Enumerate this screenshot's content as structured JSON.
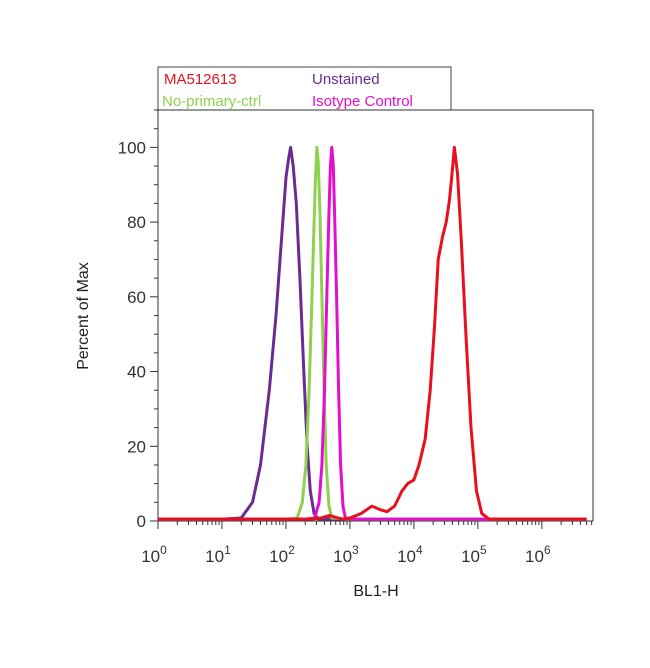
{
  "chart_data": {
    "type": "line",
    "title": "",
    "xlabel": "BL1-H",
    "ylabel": "Percent of Max",
    "x_scale": "log",
    "xlim": [
      1,
      6300000
    ],
    "ylim": [
      0,
      110
    ],
    "grid": false,
    "legend_position": "top-left, above plot",
    "y_ticks": [
      "0",
      "20",
      "40",
      "60",
      "80",
      "100"
    ],
    "x_ticks": [
      {
        "base": "10",
        "exp": "0"
      },
      {
        "base": "10",
        "exp": "1"
      },
      {
        "base": "10",
        "exp": "2"
      },
      {
        "base": "10",
        "exp": "3"
      },
      {
        "base": "10",
        "exp": "4"
      },
      {
        "base": "10",
        "exp": "5"
      },
      {
        "base": "10",
        "exp": "6"
      }
    ],
    "series": [
      {
        "name": "Unstained",
        "color": "#6a2c91",
        "points": [
          [
            1,
            0.5
          ],
          [
            10,
            0.5
          ],
          [
            20,
            0.8
          ],
          [
            30,
            5
          ],
          [
            40,
            15
          ],
          [
            55,
            35
          ],
          [
            70,
            55
          ],
          [
            85,
            75
          ],
          [
            100,
            92
          ],
          [
            110,
            97
          ],
          [
            118,
            100
          ],
          [
            130,
            95
          ],
          [
            145,
            85
          ],
          [
            165,
            65
          ],
          [
            190,
            40
          ],
          [
            215,
            20
          ],
          [
            240,
            8
          ],
          [
            275,
            2
          ],
          [
            320,
            0.5
          ],
          [
            1000,
            0.5
          ],
          [
            100000,
            0.5
          ],
          [
            5000000,
            0.5
          ]
        ]
      },
      {
        "name": "No-primary-ctrl",
        "color": "#8fd14f",
        "points": [
          [
            1,
            0.5
          ],
          [
            100,
            0.5
          ],
          [
            150,
            0.8
          ],
          [
            180,
            5
          ],
          [
            205,
            15
          ],
          [
            230,
            35
          ],
          [
            255,
            60
          ],
          [
            275,
            80
          ],
          [
            290,
            92
          ],
          [
            305,
            100
          ],
          [
            320,
            96
          ],
          [
            340,
            82
          ],
          [
            365,
            60
          ],
          [
            395,
            35
          ],
          [
            425,
            15
          ],
          [
            470,
            4
          ],
          [
            520,
            0.8
          ],
          [
            1000,
            0.5
          ],
          [
            100000,
            0.5
          ],
          [
            5000000,
            0.5
          ]
        ]
      },
      {
        "name": "Isotype Control",
        "color": "#e40ecf",
        "points": [
          [
            1,
            0.5
          ],
          [
            200,
            0.5
          ],
          [
            280,
            0.8
          ],
          [
            330,
            5
          ],
          [
            365,
            15
          ],
          [
            400,
            35
          ],
          [
            435,
            60
          ],
          [
            465,
            80
          ],
          [
            495,
            95
          ],
          [
            520,
            100
          ],
          [
            550,
            95
          ],
          [
            580,
            80
          ],
          [
            620,
            60
          ],
          [
            665,
            35
          ],
          [
            715,
            15
          ],
          [
            780,
            4
          ],
          [
            850,
            0.8
          ],
          [
            1000,
            0.5
          ],
          [
            100000,
            0.5
          ],
          [
            5000000,
            0.5
          ]
        ]
      },
      {
        "name": "MA512613",
        "color": "#e8101e",
        "points": [
          [
            1,
            0.5
          ],
          [
            250,
            0.5
          ],
          [
            350,
            0.8
          ],
          [
            480,
            1.5
          ],
          [
            600,
            1
          ],
          [
            750,
            0.5
          ],
          [
            1000,
            0.8
          ],
          [
            1500,
            2
          ],
          [
            2200,
            4
          ],
          [
            3000,
            3
          ],
          [
            3800,
            2.5
          ],
          [
            5000,
            4
          ],
          [
            6500,
            8
          ],
          [
            8000,
            10
          ],
          [
            10000,
            11
          ],
          [
            12000,
            15
          ],
          [
            15000,
            22
          ],
          [
            18000,
            35
          ],
          [
            21000,
            52
          ],
          [
            24000,
            70
          ],
          [
            28000,
            76
          ],
          [
            32000,
            80
          ],
          [
            36000,
            86
          ],
          [
            40000,
            94
          ],
          [
            43000,
            100
          ],
          [
            48000,
            93
          ],
          [
            55000,
            75
          ],
          [
            65000,
            50
          ],
          [
            78000,
            25
          ],
          [
            95000,
            8
          ],
          [
            115000,
            2
          ],
          [
            150000,
            0.5
          ],
          [
            400000,
            0.5
          ],
          [
            5000000,
            0.5
          ]
        ]
      }
    ]
  }
}
